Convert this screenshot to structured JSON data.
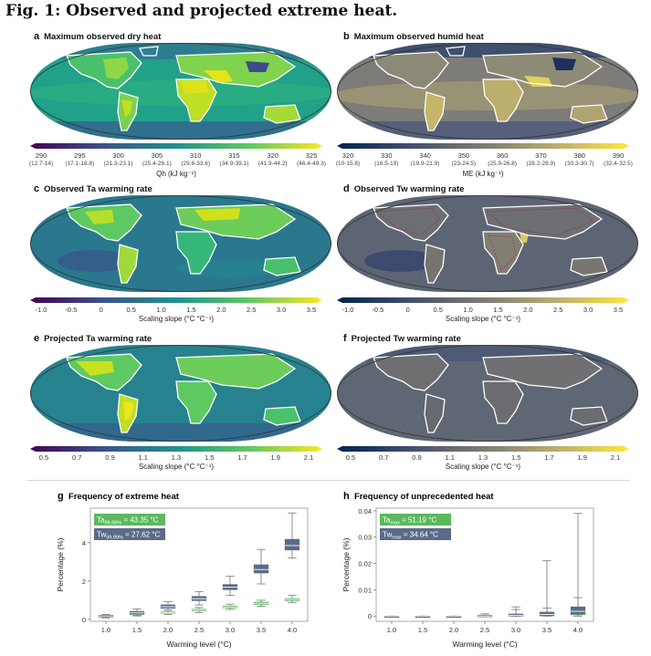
{
  "figure": {
    "title": "Fig. 1: Observed and projected extreme heat."
  },
  "panels": {
    "a": {
      "letter": "a",
      "title": "Maximum observed dry heat",
      "colorbar": {
        "ticks": [
          "290",
          "295",
          "300",
          "305",
          "310",
          "315",
          "320",
          "325"
        ],
        "subticks": [
          "(12.7-14)",
          "(17.1-18.8)",
          "(21.3-23.1)",
          "(25.4-28.1)",
          "(29.6-33.6)",
          "(34.9-39.1)",
          "(41.9-44.2)",
          "(46.4-49.3)"
        ],
        "label": "Qh (kJ kg⁻¹)"
      }
    },
    "b": {
      "letter": "b",
      "title": "Maximum observed humid heat",
      "colorbar": {
        "ticks": [
          "320",
          "330",
          "340",
          "350",
          "360",
          "370",
          "380",
          "390"
        ],
        "subticks": [
          "(10-15.8)",
          "(16.5-19)",
          "(19.9-21.9)",
          "(23-24.5)",
          "(25.9-26.8)",
          "(28.2-28.9)",
          "(30.3-30.7)",
          "(32.4-32.5)"
        ],
        "label": "ME (kJ kg⁻¹)"
      }
    },
    "c": {
      "letter": "c",
      "title": "Observed Ta warming rate",
      "colorbar": {
        "ticks": [
          "-1.0",
          "-0.5",
          "0",
          "0.5",
          "1.0",
          "1.5",
          "2.0",
          "2.5",
          "3.0",
          "3.5"
        ],
        "label": "Scaling slope (°C °C⁻¹)"
      }
    },
    "d": {
      "letter": "d",
      "title": "Observed Tw warming rate",
      "colorbar": {
        "ticks": [
          "-1.0",
          "-0.5",
          "0",
          "0.5",
          "1.0",
          "1.5",
          "2.0",
          "2.5",
          "3.0",
          "3.5"
        ],
        "label": "Scaling slope (°C °C⁻¹)"
      }
    },
    "e": {
      "letter": "e",
      "title": "Projected Ta warming rate",
      "colorbar": {
        "ticks": [
          "0.5",
          "0.7",
          "0.9",
          "1.1",
          "1.3",
          "1.5",
          "1.7",
          "1.9",
          "2.1"
        ],
        "label": "Scaling slope (°C °C⁻¹)"
      }
    },
    "f": {
      "letter": "f",
      "title": "Projected Tw warming rate",
      "colorbar": {
        "ticks": [
          "0.5",
          "0.7",
          "0.9",
          "1.1",
          "1.3",
          "1.5",
          "1.7",
          "1.9",
          "2.1"
        ],
        "label": "Scaling slope (°C °C⁻¹)"
      }
    }
  },
  "colors": {
    "viridis": [
      "#440154",
      "#3b528b",
      "#21918c",
      "#5ec962",
      "#fde725"
    ],
    "cividis": [
      "#00224e",
      "#35456c",
      "#666970",
      "#948e77",
      "#c8b866",
      "#fee838"
    ],
    "ta_green": "#5cb85c",
    "tw_slate": "#5a6b89"
  },
  "chart_data": [
    {
      "panel": "g",
      "letter": "g",
      "type": "box",
      "title": "Frequency of extreme heat",
      "xlabel": "Warming level (°C)",
      "ylabel": "Percentage (%)",
      "categories": [
        "1.0",
        "1.5",
        "2.0",
        "2.5",
        "3.0",
        "3.5",
        "4.0"
      ],
      "ylim": [
        -0.1,
        5.8
      ],
      "yticks": [
        "0",
        "2",
        "4"
      ],
      "legend": [
        {
          "base": "Ta",
          "sub": "99.99%",
          "value": "= 43.35 °C",
          "color": "#5cb85c"
        },
        {
          "base": "Tw",
          "sub": "99.99%",
          "value": "= 27.62 °C",
          "color": "#5a6b89"
        }
      ],
      "series": [
        {
          "name": "Ta",
          "color": "#5cb85c",
          "boxes": [
            {
              "min": 0.08,
              "q1": 0.12,
              "median": 0.15,
              "q3": 0.18,
              "max": 0.22
            },
            {
              "min": 0.18,
              "q1": 0.24,
              "median": 0.28,
              "q3": 0.32,
              "max": 0.4
            },
            {
              "min": 0.26,
              "q1": 0.32,
              "median": 0.36,
              "q3": 0.4,
              "max": 0.48
            },
            {
              "min": 0.36,
              "q1": 0.44,
              "median": 0.48,
              "q3": 0.53,
              "max": 0.62
            },
            {
              "min": 0.52,
              "q1": 0.6,
              "median": 0.65,
              "q3": 0.7,
              "max": 0.8
            },
            {
              "min": 0.68,
              "q1": 0.78,
              "median": 0.84,
              "q3": 0.9,
              "max": 1.0
            },
            {
              "min": 0.88,
              "q1": 0.97,
              "median": 1.03,
              "q3": 1.08,
              "max": 1.25
            }
          ]
        },
        {
          "name": "Tw",
          "color": "#5a6b89",
          "boxes": [
            {
              "min": 0.1,
              "q1": 0.15,
              "median": 0.18,
              "q3": 0.22,
              "max": 0.26
            },
            {
              "min": 0.2,
              "q1": 0.28,
              "median": 0.34,
              "q3": 0.42,
              "max": 0.55
            },
            {
              "min": 0.48,
              "q1": 0.58,
              "median": 0.66,
              "q3": 0.76,
              "max": 0.92
            },
            {
              "min": 0.75,
              "q1": 0.98,
              "median": 1.08,
              "q3": 1.2,
              "max": 1.45
            },
            {
              "min": 1.25,
              "q1": 1.55,
              "median": 1.68,
              "q3": 1.82,
              "max": 2.25
            },
            {
              "min": 1.85,
              "q1": 2.42,
              "median": 2.6,
              "q3": 2.85,
              "max": 3.65
            },
            {
              "min": 3.2,
              "q1": 3.62,
              "median": 3.85,
              "q3": 4.18,
              "max": 5.55
            }
          ]
        }
      ]
    },
    {
      "panel": "h",
      "letter": "h",
      "type": "box",
      "title": "Frequency of unprecedented heat",
      "xlabel": "Warming level (°C)",
      "ylabel": "Percentage (%)",
      "categories": [
        "1.0",
        "1.5",
        "2.0",
        "2.5",
        "3.0",
        "3.5",
        "4.0"
      ],
      "ylim": [
        -0.002,
        0.041
      ],
      "yticks": [
        "0",
        "0.01",
        "0.02",
        "0.03",
        "0.04"
      ],
      "legend": [
        {
          "base": "Ta",
          "sub": "max",
          "value": "= 51.19 °C",
          "color": "#5cb85c"
        },
        {
          "base": "Tw",
          "sub": "max",
          "value": "= 34.64 °C",
          "color": "#5a6b89"
        }
      ],
      "series": [
        {
          "name": "Ta",
          "color": "#5cb85c",
          "boxes": [
            {
              "min": 0,
              "q1": 0,
              "median": 0,
              "q3": 0,
              "max": 0
            },
            {
              "min": 0,
              "q1": 0,
              "median": 0,
              "q3": 0,
              "max": 0
            },
            {
              "min": 0,
              "q1": 0,
              "median": 0,
              "q3": 0,
              "max": 0
            },
            {
              "min": 0,
              "q1": 0,
              "median": 0,
              "q3": 0.0003,
              "max": 0.0008
            },
            {
              "min": 0,
              "q1": 0,
              "median": 0.0001,
              "q3": 0.0005,
              "max": 0.0025
            },
            {
              "min": 0,
              "q1": 0,
              "median": 0.0002,
              "q3": 0.0008,
              "max": 0.003
            },
            {
              "min": 0,
              "q1": 0.0005,
              "median": 0.001,
              "q3": 0.002,
              "max": 0.007
            }
          ]
        },
        {
          "name": "Tw",
          "color": "#5a6b89",
          "boxes": [
            {
              "min": 0,
              "q1": 0,
              "median": 0,
              "q3": 0,
              "max": 0
            },
            {
              "min": 0,
              "q1": 0,
              "median": 0,
              "q3": 0,
              "max": 0
            },
            {
              "min": 0,
              "q1": 0,
              "median": 0,
              "q3": 0,
              "max": 0
            },
            {
              "min": 0,
              "q1": 0,
              "median": 0,
              "q3": 0.0002,
              "max": 0.0008
            },
            {
              "min": 0,
              "q1": 0,
              "median": 0.0003,
              "q3": 0.0008,
              "max": 0.0035
            },
            {
              "min": 0,
              "q1": 0.0002,
              "median": 0.0006,
              "q3": 0.0015,
              "max": 0.021
            },
            {
              "min": 0,
              "q1": 0.0008,
              "median": 0.0018,
              "q3": 0.0035,
              "max": 0.039
            }
          ]
        }
      ]
    }
  ]
}
